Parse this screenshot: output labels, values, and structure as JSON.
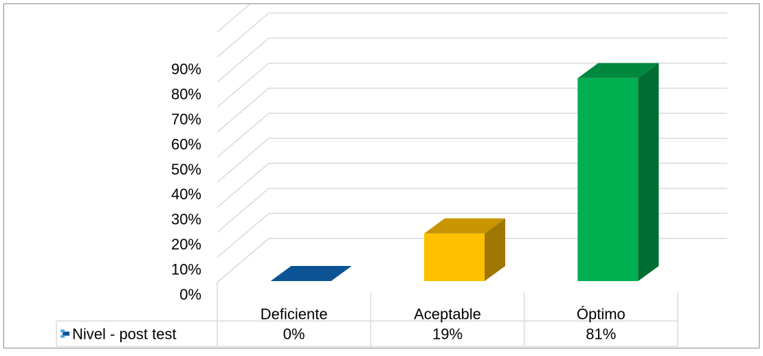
{
  "chart_data": {
    "type": "bar",
    "style": "3d-column-with-data-table",
    "categories": [
      "Deficiente",
      "Aceptable",
      "Óptimo"
    ],
    "series": [
      {
        "name": "Nivel - post test",
        "values": [
          0,
          19,
          81
        ],
        "labels": [
          "0%",
          "19%",
          "81%"
        ]
      }
    ],
    "bar_colors": [
      "#0b5394",
      "#ffc000",
      "#00b050"
    ],
    "y_ticks": [
      "0%",
      "10%",
      "20%",
      "30%",
      "40%",
      "50%",
      "60%",
      "70%",
      "80%",
      "90%"
    ],
    "ylim": [
      0,
      90
    ],
    "grid": true,
    "legend": "data-table"
  }
}
